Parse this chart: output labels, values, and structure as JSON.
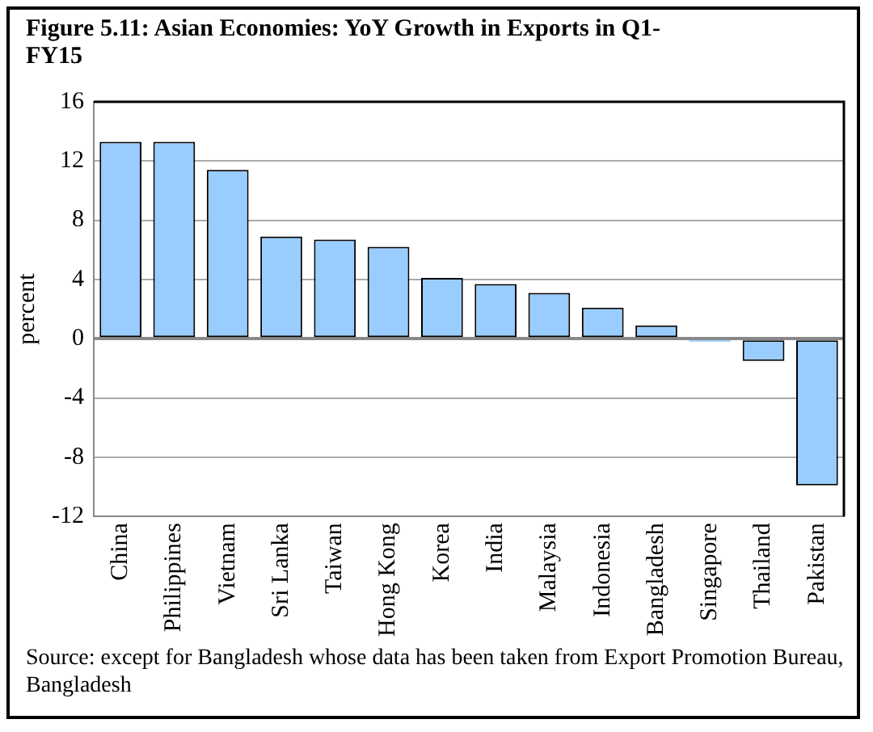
{
  "chart_data": {
    "type": "bar",
    "title": "Figure 5.11: Asian Economies: YoY Growth in Exports in Q1-FY15",
    "ylabel": "percent",
    "categories": [
      "China",
      "Philippines",
      "Vietnam",
      "Sri Lanka",
      "Taiwan",
      "Hong Kong",
      "Korea",
      "India",
      "Malaysia",
      "Indonesia",
      "Bangladesh",
      "Singapore",
      "Thailand",
      "Pakistan"
    ],
    "values": [
      13.3,
      13.3,
      11.4,
      6.9,
      6.7,
      6.2,
      4.1,
      3.7,
      3.1,
      2.1,
      0.9,
      -0.2,
      -1.5,
      -9.9
    ],
    "color": "#99ccff",
    "ylim": [
      -12,
      16
    ],
    "yticks": [
      -12,
      -8,
      -4,
      0,
      4,
      8,
      12,
      16
    ],
    "grid": "y",
    "annotations": [
      "Source: except for Bangladesh whose data has been taken from  Export Promotion Bureau, Bangladesh"
    ]
  }
}
